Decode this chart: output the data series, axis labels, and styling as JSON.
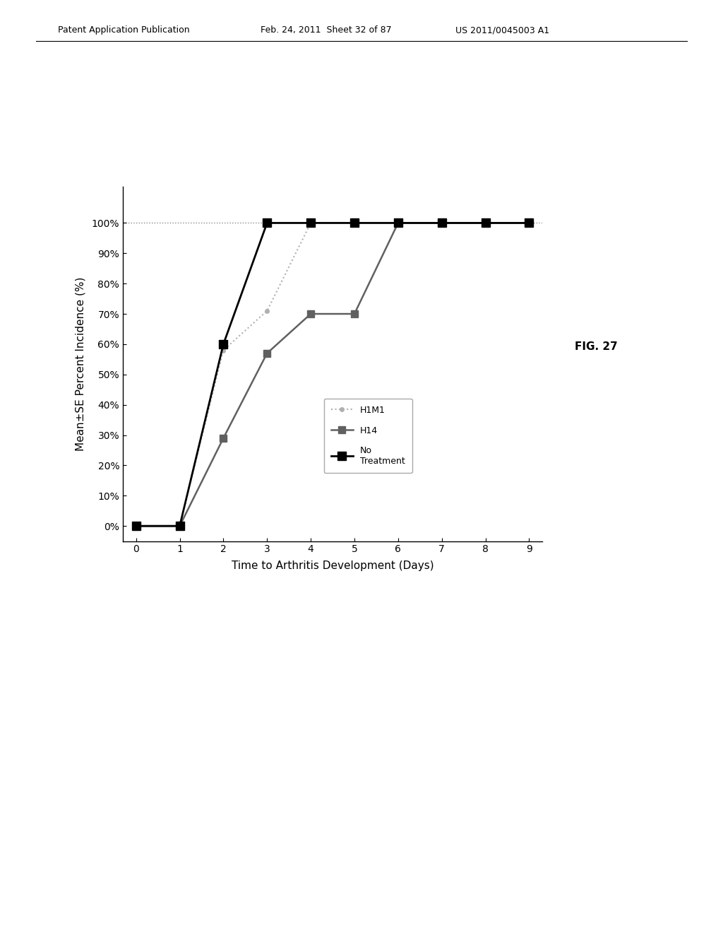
{
  "title_text": "FIG. 27",
  "xlabel": "Time to Arthritis Development (Days)",
  "ylabel": "Mean±SE Percent Incidence (%)",
  "header_left": "Patent Application Publication",
  "header_center": "Feb. 24, 2011  Sheet 32 of 87",
  "header_right": "US 2011/0045003 A1",
  "xlim": [
    -0.3,
    9.3
  ],
  "ylim": [
    -0.05,
    1.12
  ],
  "xticks": [
    0,
    1,
    2,
    3,
    4,
    5,
    6,
    7,
    8,
    9
  ],
  "yticks": [
    0.0,
    0.1,
    0.2,
    0.3,
    0.4,
    0.5,
    0.6,
    0.7,
    0.8,
    0.9,
    1.0
  ],
  "ytick_labels": [
    "0%",
    "10%",
    "20%",
    "30%",
    "40%",
    "50%",
    "60%",
    "70%",
    "80%",
    "90%",
    "100%"
  ],
  "H1M1_x": [
    0,
    1,
    2,
    3,
    4,
    5,
    6,
    7,
    8,
    9
  ],
  "H1M1_y": [
    0.0,
    0.0,
    0.58,
    0.71,
    1.0,
    1.0,
    1.0,
    1.0,
    1.0,
    1.0
  ],
  "H14_x": [
    0,
    1,
    2,
    3,
    4,
    5,
    6,
    7,
    8,
    9
  ],
  "H14_y": [
    0.0,
    0.0,
    0.29,
    0.57,
    0.7,
    0.7,
    1.0,
    1.0,
    1.0,
    1.0
  ],
  "NoTreat_x": [
    0,
    1,
    2,
    3,
    4,
    5,
    6,
    7,
    8,
    9
  ],
  "NoTreat_y": [
    0.0,
    0.0,
    0.6,
    1.0,
    1.0,
    1.0,
    1.0,
    1.0,
    1.0,
    1.0
  ],
  "H1M1_color": "#b0b0b0",
  "H14_color": "#606060",
  "NoTreat_color": "#000000",
  "bg_color": "#ffffff",
  "fig_bg_color": "#ffffff"
}
